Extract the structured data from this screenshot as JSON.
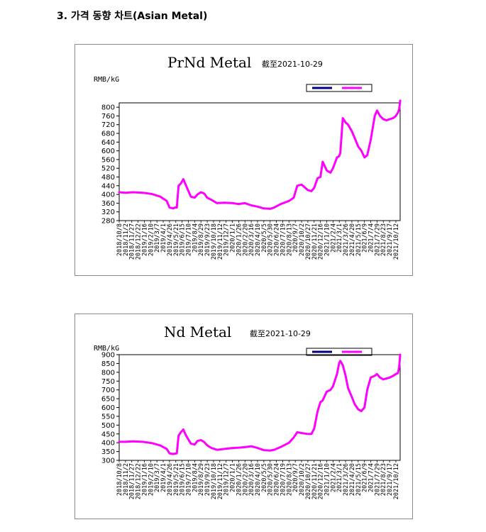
{
  "heading": "3. 가격 동향 차트(Asian Metal)",
  "chart_data": [
    {
      "type": "line",
      "title": "PrNd Metal",
      "date_note": "截至2021-10-29",
      "ylabel": "RMB/kG",
      "ylim": [
        280,
        820
      ],
      "yticks": [
        280,
        320,
        360,
        400,
        440,
        480,
        520,
        560,
        600,
        640,
        680,
        720,
        760,
        800
      ],
      "legend": "top-right",
      "colors": {
        "series": "#ff00ff",
        "legend_swatch_1": "#000080",
        "legend_swatch_2": "#ff00ff"
      },
      "x_labels": [
        "2018/10/8",
        "2018/11/2",
        "2018/11/27",
        "2018/12/22",
        "2019/1/16",
        "2019/2/10",
        "2019/3/7",
        "2019/4/1",
        "2019/4/26",
        "2019/5/21",
        "2019/6/15",
        "2019/7/10",
        "2019/8/4",
        "2019/8/29",
        "2019/9/23",
        "2019/10/18",
        "2019/11/12",
        "2019/12/7",
        "2020/1/1",
        "2020/1/26",
        "2020/2/20",
        "2020/3/16",
        "2020/4/10",
        "2020/5/5",
        "2020/5/30",
        "2020/6/24",
        "2020/7/19",
        "2020/8/13",
        "2020/9/7",
        "2020/10/2",
        "2020/10/27",
        "2020/11/21",
        "2020/12/16",
        "2021/1/10",
        "2021/2/4",
        "2021/3/1",
        "2021/3/26",
        "2021/4/20",
        "2021/5/15",
        "2021/6/9",
        "2021/7/4",
        "2021/7/29",
        "2021/8/23",
        "2021/9/17",
        "2021/10/12"
      ],
      "x": [
        "2018/10/8",
        "2018/11/2",
        "2018/12/1",
        "2019/1/10",
        "2019/2/15",
        "2019/3/20",
        "2019/4/15",
        "2019/4/26",
        "2019/5/12",
        "2019/5/16",
        "2019/5/25",
        "2019/6/1",
        "2019/6/10",
        "2019/6/20",
        "2019/7/1",
        "2019/7/20",
        "2019/8/4",
        "2019/8/15",
        "2019/8/29",
        "2019/9/10",
        "2019/9/23",
        "2019/10/10",
        "2019/11/1",
        "2019/12/1",
        "2020/1/1",
        "2020/1/26",
        "2020/2/20",
        "2020/3/16",
        "2020/4/10",
        "2020/5/5",
        "2020/5/30",
        "2020/6/15",
        "2020/7/10",
        "2020/8/13",
        "2020/9/1",
        "2020/9/15",
        "2020/10/2",
        "2020/10/27",
        "2020/11/10",
        "2020/11/21",
        "2020/12/5",
        "2020/12/16",
        "2020/12/25",
        "2021/1/10",
        "2021/1/25",
        "2021/2/4",
        "2021/2/20",
        "2021/2/28",
        "2021/3/5",
        "2021/3/15",
        "2021/3/26",
        "2021/4/5",
        "2021/4/20",
        "2021/5/1",
        "2021/5/15",
        "2021/5/28",
        "2021/6/9",
        "2021/6/20",
        "2021/7/4",
        "2021/7/20",
        "2021/7/29",
        "2021/8/10",
        "2021/8/23",
        "2021/9/5",
        "2021/9/17",
        "2021/10/1",
        "2021/10/12",
        "2021/10/20",
        "2021/10/25",
        "2021/10/29"
      ],
      "values": [
        410,
        408,
        410,
        408,
        402,
        390,
        370,
        340,
        336,
        340,
        340,
        440,
        450,
        470,
        440,
        390,
        385,
        400,
        410,
        405,
        385,
        375,
        360,
        362,
        360,
        356,
        360,
        350,
        344,
        336,
        334,
        340,
        355,
        370,
        385,
        440,
        445,
        420,
        415,
        430,
        475,
        480,
        550,
        510,
        500,
        520,
        570,
        575,
        590,
        750,
        730,
        720,
        690,
        660,
        620,
        600,
        570,
        580,
        650,
        760,
        785,
        760,
        745,
        740,
        745,
        750,
        760,
        775,
        790,
        830
      ]
    },
    {
      "type": "line",
      "title": "Nd Metal",
      "date_note": "截至2021-10-29",
      "ylabel": "RMB/kG",
      "ylim": [
        300,
        900
      ],
      "yticks": [
        300,
        350,
        400,
        450,
        500,
        550,
        600,
        650,
        700,
        750,
        800,
        850,
        900
      ],
      "legend": "top-right",
      "colors": {
        "series": "#ff00ff",
        "legend_swatch_1": "#000080",
        "legend_swatch_2": "#ff00ff"
      },
      "x_labels": [
        "2018/10/8",
        "2018/11/2",
        "2018/11/27",
        "2018/12/22",
        "2019/1/16",
        "2019/2/10",
        "2019/3/7",
        "2019/4/1",
        "2019/4/26",
        "2019/5/21",
        "2019/6/15",
        "2019/7/10",
        "2019/8/4",
        "2019/8/29",
        "2019/9/23",
        "2019/10/18",
        "2019/11/12",
        "2019/12/7",
        "2020/1/1",
        "2020/1/26",
        "2020/2/20",
        "2020/3/16",
        "2020/4/10",
        "2020/5/5",
        "2020/5/30",
        "2020/6/24",
        "2020/7/19",
        "2020/8/13",
        "2020/9/7",
        "2020/10/2",
        "2020/10/27",
        "2020/11/21",
        "2020/12/16",
        "2021/1/10",
        "2021/2/4",
        "2021/3/1",
        "2021/3/26",
        "2021/4/20",
        "2021/5/15",
        "2021/6/9",
        "2021/7/4",
        "2021/7/29",
        "2021/8/23",
        "2021/9/17",
        "2021/10/12"
      ],
      "x": [
        "2018/10/8",
        "2018/11/2",
        "2018/12/1",
        "2019/1/10",
        "2019/2/15",
        "2019/3/20",
        "2019/4/15",
        "2019/4/26",
        "2019/5/12",
        "2019/5/16",
        "2019/5/25",
        "2019/6/1",
        "2019/6/10",
        "2019/6/20",
        "2019/7/1",
        "2019/7/20",
        "2019/8/4",
        "2019/8/15",
        "2019/8/29",
        "2019/9/10",
        "2019/9/23",
        "2019/10/10",
        "2019/11/1",
        "2019/12/1",
        "2020/1/1",
        "2020/1/26",
        "2020/2/20",
        "2020/3/16",
        "2020/4/10",
        "2020/5/5",
        "2020/5/30",
        "2020/6/15",
        "2020/7/10",
        "2020/8/13",
        "2020/9/1",
        "2020/9/15",
        "2020/10/2",
        "2020/10/27",
        "2020/11/10",
        "2020/11/21",
        "2020/12/5",
        "2020/12/16",
        "2020/12/25",
        "2021/1/10",
        "2021/1/25",
        "2021/2/4",
        "2021/2/20",
        "2021/2/28",
        "2021/3/5",
        "2021/3/15",
        "2021/3/26",
        "2021/4/5",
        "2021/4/20",
        "2021/5/1",
        "2021/5/15",
        "2021/5/28",
        "2021/6/9",
        "2021/6/20",
        "2021/7/4",
        "2021/7/20",
        "2021/7/29",
        "2021/8/10",
        "2021/8/23",
        "2021/9/5",
        "2021/9/17",
        "2021/10/1",
        "2021/10/12",
        "2021/10/20",
        "2021/10/25",
        "2021/10/29"
      ],
      "values": [
        405,
        405,
        408,
        405,
        398,
        385,
        365,
        340,
        336,
        338,
        340,
        440,
        460,
        475,
        440,
        395,
        390,
        410,
        415,
        405,
        385,
        370,
        360,
        365,
        370,
        372,
        375,
        380,
        370,
        358,
        356,
        360,
        375,
        400,
        430,
        460,
        455,
        450,
        450,
        480,
        580,
        630,
        640,
        690,
        700,
        720,
        790,
        850,
        865,
        840,
        780,
        710,
        660,
        620,
        590,
        580,
        600,
        700,
        770,
        780,
        790,
        770,
        760,
        765,
        770,
        780,
        790,
        795,
        830,
        900
      ]
    }
  ]
}
